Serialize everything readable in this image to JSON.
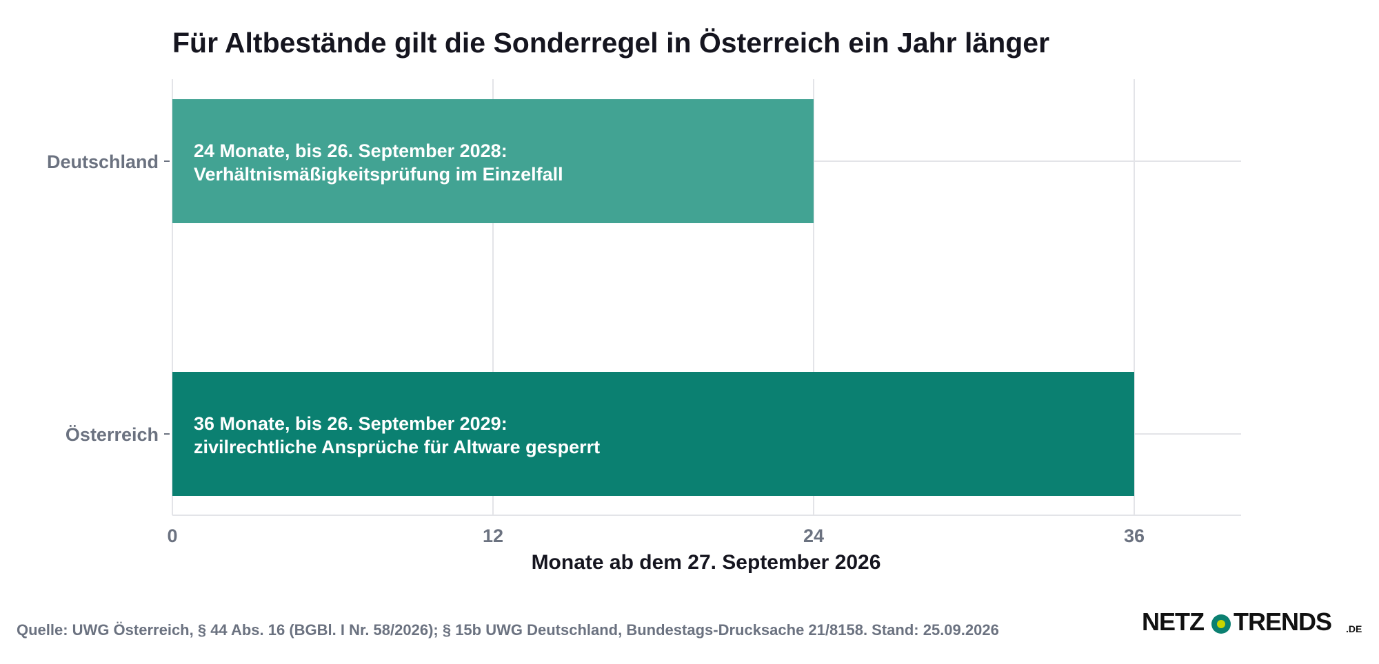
{
  "chart_data": {
    "type": "bar",
    "orientation": "horizontal",
    "title": "Für Altbestände gilt die Sonderregel in Österreich ein Jahr länger",
    "xlabel": "Monate ab dem 27. September 2026",
    "ylabel": "",
    "xlim": [
      0,
      40
    ],
    "xticks": [
      0,
      12,
      24,
      36
    ],
    "grid": true,
    "categories": [
      "Deutschland",
      "Österreich"
    ],
    "values": [
      24,
      36
    ],
    "colors": [
      "#42a393",
      "#0b8071"
    ],
    "bar_labels": [
      [
        "24 Monate, bis 26. September 2028:",
        "Verhältnismäßigkeitsprüfung im Einzelfall"
      ],
      [
        "36 Monate, bis 26. September 2029:",
        "zivilrechtliche Ansprüche für Altware gesperrt"
      ]
    ]
  },
  "footer": {
    "source": "Quelle: UWG Österreich, § 44 Abs. 16 (BGBl. I Nr. 58/2026); § 15b UWG Deutschland, Bundestags-Drucksache 21/8158. Stand: 25.09.2026"
  },
  "logo": {
    "left": "NETZ",
    "right": "TRENDS",
    "suffix": ".DE",
    "icon": "netztrends-dot-icon",
    "dot_outer_color": "#0b8071",
    "dot_inner_color": "#c8d400"
  },
  "colors": {
    "grid": "#e3e4e8",
    "text_dark": "#15151f",
    "text_muted": "#6b7280"
  }
}
